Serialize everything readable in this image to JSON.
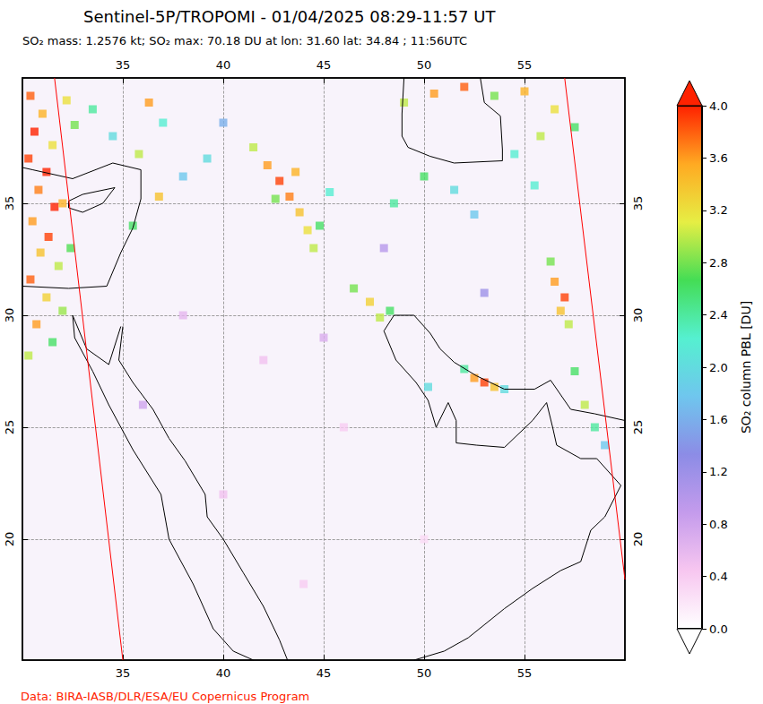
{
  "chart_data": {
    "type": "map",
    "title": "Sentinel-5P/TROPOMI - 01/04/2025 08:29-11:57 UT",
    "subtitle": "SO₂ mass: 1.2576 kt; SO₂ max: 70.18 DU at lon: 31.60 lat: 34.84 ; 11:56UTC",
    "credit": "Data: BIRA-IASB/DLR/ESA/EU Copernicus Program",
    "xlim": [
      30,
      60
    ],
    "ylim": [
      14.6,
      40.6
    ],
    "xticks": [
      35,
      40,
      45,
      50,
      55
    ],
    "yticks": [
      20,
      25,
      30,
      35
    ],
    "grid": true,
    "colorbar": {
      "label": "SO₂ column PBL [DU]",
      "range": [
        0,
        4
      ],
      "ticks": [
        {
          "value": 0,
          "label": "0.0"
        },
        {
          "value": 0.4,
          "label": "0.4"
        },
        {
          "value": 0.8,
          "label": "0.8"
        },
        {
          "value": 1.2,
          "label": "1.2"
        },
        {
          "value": 1.6,
          "label": "1.6"
        },
        {
          "value": 2,
          "label": "2.0"
        },
        {
          "value": 2.4,
          "label": "2.4"
        },
        {
          "value": 2.8,
          "label": "2.8"
        },
        {
          "value": 3.2,
          "label": "3.2"
        },
        {
          "value": 3.6,
          "label": "3.6"
        },
        {
          "value": 4,
          "label": "4.0"
        }
      ]
    },
    "cells": [
      [
        30.4,
        39.8,
        3.8
      ],
      [
        31.0,
        39.0,
        3.5
      ],
      [
        30.6,
        38.2,
        4.0
      ],
      [
        31.5,
        37.6,
        3.2
      ],
      [
        30.3,
        37.0,
        3.9
      ],
      [
        31.2,
        36.4,
        4.0
      ],
      [
        30.8,
        35.6,
        3.7
      ],
      [
        31.6,
        34.84,
        4.0
      ],
      [
        30.5,
        34.2,
        3.6
      ],
      [
        31.3,
        33.5,
        3.9
      ],
      [
        30.9,
        32.8,
        3.4
      ],
      [
        31.8,
        32.2,
        3.0
      ],
      [
        30.4,
        31.6,
        3.8
      ],
      [
        31.2,
        30.8,
        3.3
      ],
      [
        32.0,
        30.2,
        2.9
      ],
      [
        30.7,
        29.6,
        3.6
      ],
      [
        31.5,
        28.8,
        2.6
      ],
      [
        30.3,
        28.2,
        3.0
      ],
      [
        32.2,
        39.6,
        3.2
      ],
      [
        32.6,
        38.5,
        2.8
      ],
      [
        32.0,
        35.0,
        3.5
      ],
      [
        32.4,
        33.0,
        2.7
      ],
      [
        33.5,
        39.2,
        2.4
      ],
      [
        34.5,
        38.0,
        2.0
      ],
      [
        35.8,
        37.2,
        3.0
      ],
      [
        36.3,
        39.5,
        3.6
      ],
      [
        37.0,
        38.6,
        2.2
      ],
      [
        36.8,
        35.3,
        3.4
      ],
      [
        35.5,
        34.0,
        2.6
      ],
      [
        38.0,
        36.2,
        1.8
      ],
      [
        39.2,
        37.0,
        2.0
      ],
      [
        40.0,
        38.6,
        1.6
      ],
      [
        41.5,
        37.5,
        3.0
      ],
      [
        42.2,
        36.7,
        3.6
      ],
      [
        42.8,
        36.0,
        3.9
      ],
      [
        43.3,
        35.3,
        3.7
      ],
      [
        43.8,
        34.6,
        3.4
      ],
      [
        44.2,
        33.8,
        3.2
      ],
      [
        44.5,
        33.0,
        3.0
      ],
      [
        43.6,
        36.4,
        3.5
      ],
      [
        42.6,
        35.2,
        2.8
      ],
      [
        44.8,
        34.0,
        2.6
      ],
      [
        45.3,
        35.5,
        2.2
      ],
      [
        46.5,
        31.2,
        2.8
      ],
      [
        47.3,
        30.6,
        3.3
      ],
      [
        47.8,
        29.9,
        3.0
      ],
      [
        48.3,
        30.2,
        2.6
      ],
      [
        50.2,
        26.8,
        2.0
      ],
      [
        52.5,
        27.2,
        3.6
      ],
      [
        53.0,
        27.0,
        3.9
      ],
      [
        53.5,
        26.8,
        3.4
      ],
      [
        52.0,
        27.6,
        2.4
      ],
      [
        54.0,
        26.7,
        2.0
      ],
      [
        49.0,
        39.5,
        3.0
      ],
      [
        50.5,
        39.9,
        3.6
      ],
      [
        52.0,
        40.2,
        3.8
      ],
      [
        53.5,
        39.8,
        2.8
      ],
      [
        55.0,
        40.0,
        3.5
      ],
      [
        56.5,
        39.2,
        3.2
      ],
      [
        57.5,
        38.4,
        2.6
      ],
      [
        55.8,
        38.0,
        3.0
      ],
      [
        54.5,
        37.2,
        2.2
      ],
      [
        50.0,
        36.2,
        2.6
      ],
      [
        51.5,
        35.6,
        2.0
      ],
      [
        48.5,
        35.0,
        2.4
      ],
      [
        52.5,
        34.5,
        1.8
      ],
      [
        55.5,
        35.8,
        2.2
      ],
      [
        56.5,
        31.5,
        3.6
      ],
      [
        57.0,
        30.8,
        3.9
      ],
      [
        56.8,
        30.2,
        3.4
      ],
      [
        57.2,
        29.6,
        3.0
      ],
      [
        56.3,
        32.4,
        2.8
      ],
      [
        57.5,
        27.5,
        2.6
      ],
      [
        58.0,
        26.0,
        3.0
      ],
      [
        58.5,
        25.0,
        2.4
      ],
      [
        59.0,
        24.2,
        1.8
      ],
      [
        38.0,
        30.0,
        0.6
      ],
      [
        42.0,
        28.0,
        0.5
      ],
      [
        46.0,
        25.0,
        0.4
      ],
      [
        40.0,
        22.0,
        0.5
      ],
      [
        50.0,
        20.0,
        0.3
      ],
      [
        44.0,
        18.0,
        0.4
      ],
      [
        36.0,
        26.0,
        0.8
      ],
      [
        48.0,
        33.0,
        1.0
      ],
      [
        53.0,
        31.0,
        1.2
      ],
      [
        45.0,
        29.0,
        0.7
      ]
    ],
    "coastlines": [
      [
        [
          35.0,
          29.5
        ],
        [
          34.8,
          28.0
        ],
        [
          35.5,
          27.0
        ],
        [
          36.5,
          25.8
        ],
        [
          37.3,
          24.5
        ],
        [
          38.1,
          23.5
        ],
        [
          39.1,
          22.0
        ],
        [
          39.2,
          21.0
        ],
        [
          40.0,
          20.0
        ],
        [
          41.0,
          18.5
        ],
        [
          42.0,
          17.0
        ],
        [
          42.8,
          15.5
        ],
        [
          43.2,
          14.6
        ]
      ],
      [
        [
          32.5,
          30.0
        ],
        [
          32.6,
          29.0
        ],
        [
          33.5,
          27.5
        ],
        [
          34.3,
          26.0
        ],
        [
          35.5,
          24.0
        ],
        [
          36.9,
          22.0
        ],
        [
          37.3,
          20.0
        ],
        [
          38.5,
          18.0
        ],
        [
          39.5,
          16.0
        ],
        [
          40.5,
          15.0
        ],
        [
          41.5,
          14.6
        ]
      ],
      [
        [
          32.5,
          30.0
        ],
        [
          33.2,
          28.5
        ],
        [
          34.3,
          27.8
        ],
        [
          34.9,
          29.5
        ]
      ],
      [
        [
          30.0,
          31.3
        ],
        [
          32.3,
          31.2
        ],
        [
          34.2,
          31.3
        ],
        [
          34.9,
          32.8
        ],
        [
          35.5,
          33.9
        ],
        [
          35.9,
          35.2
        ],
        [
          35.9,
          36.5
        ],
        [
          34.5,
          36.8
        ],
        [
          32.5,
          36.1
        ],
        [
          30.5,
          36.5
        ],
        [
          30.0,
          36.6
        ]
      ],
      [
        [
          32.3,
          34.8
        ],
        [
          33.0,
          34.6
        ],
        [
          34.0,
          35.0
        ],
        [
          34.6,
          35.7
        ],
        [
          33.0,
          35.4
        ],
        [
          32.3,
          35.1
        ],
        [
          32.3,
          34.8
        ]
      ],
      [
        [
          48.5,
          30.0
        ],
        [
          48.0,
          29.3
        ],
        [
          48.6,
          28.0
        ],
        [
          49.6,
          27.0
        ],
        [
          50.2,
          26.2
        ],
        [
          50.6,
          25.0
        ],
        [
          51.2,
          26.1
        ],
        [
          51.6,
          25.3
        ],
        [
          51.6,
          24.3
        ],
        [
          52.6,
          24.2
        ],
        [
          54.0,
          24.1
        ],
        [
          55.4,
          25.3
        ],
        [
          56.1,
          26.1
        ],
        [
          56.4,
          25.0
        ],
        [
          56.6,
          24.2
        ],
        [
          57.8,
          23.6
        ],
        [
          58.6,
          23.6
        ],
        [
          59.8,
          22.4
        ],
        [
          59.0,
          21.0
        ],
        [
          58.3,
          20.4
        ],
        [
          57.8,
          19.0
        ],
        [
          56.8,
          18.6
        ],
        [
          55.4,
          17.8
        ],
        [
          54.0,
          16.9
        ],
        [
          52.2,
          15.6
        ],
        [
          51.0,
          15.0
        ],
        [
          49.5,
          14.6
        ]
      ],
      [
        [
          48.5,
          30.0
        ],
        [
          49.5,
          30.0
        ],
        [
          50.3,
          29.2
        ],
        [
          50.8,
          28.5
        ],
        [
          51.5,
          27.9
        ],
        [
          52.6,
          27.3
        ],
        [
          54.0,
          26.7
        ],
        [
          55.5,
          26.7
        ],
        [
          56.3,
          27.1
        ],
        [
          57.3,
          25.8
        ],
        [
          58.5,
          25.6
        ],
        [
          60.0,
          25.3
        ]
      ],
      [
        [
          49.0,
          40.6
        ],
        [
          48.9,
          39.0
        ],
        [
          48.9,
          38.0
        ],
        [
          49.2,
          37.5
        ],
        [
          50.3,
          37.1
        ],
        [
          51.5,
          36.8
        ],
        [
          53.9,
          36.9
        ],
        [
          53.9,
          37.4
        ],
        [
          53.8,
          38.9
        ],
        [
          53.0,
          39.5
        ],
        [
          52.8,
          40.6
        ]
      ]
    ],
    "swath_edges": [
      [
        [
          31.6,
          40.6
        ],
        [
          35.0,
          14.6
        ]
      ],
      [
        [
          57.0,
          40.6
        ],
        [
          60.0,
          18.2
        ]
      ]
    ]
  }
}
